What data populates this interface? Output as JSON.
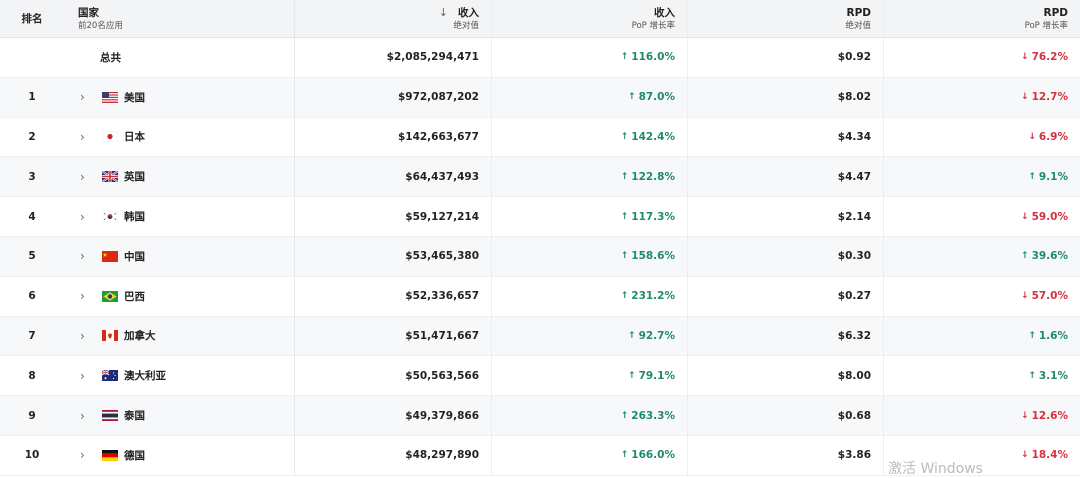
{
  "header": {
    "rank": "排名",
    "country": "国家",
    "country_sub": "前20名应用",
    "revenue": "收入",
    "revenue_sub": "绝对值",
    "revenue_growth": "收入",
    "revenue_growth_sub": "PoP 增长率",
    "rpd": "RPD",
    "rpd_sub": "绝对值",
    "rpd_growth": "RPD",
    "rpd_growth_sub": "PoP 增长率",
    "sort_icon": "sort-down-arrow-icon"
  },
  "total": {
    "label": "总共",
    "revenue": "$2,085,294,471",
    "revenue_growth": "116.0%",
    "revenue_growth_dir": "up",
    "rpd": "$0.92",
    "rpd_growth": "76.2%",
    "rpd_growth_dir": "down"
  },
  "rows": [
    {
      "rank": "1",
      "country": "美国",
      "flag": "us-flag-icon",
      "revenue": "$972,087,202",
      "revenue_growth": "87.0%",
      "revenue_growth_dir": "up",
      "rpd": "$8.02",
      "rpd_growth": "12.7%",
      "rpd_growth_dir": "down"
    },
    {
      "rank": "2",
      "country": "日本",
      "flag": "jp-flag-icon",
      "revenue": "$142,663,677",
      "revenue_growth": "142.4%",
      "revenue_growth_dir": "up",
      "rpd": "$4.34",
      "rpd_growth": "6.9%",
      "rpd_growth_dir": "down"
    },
    {
      "rank": "3",
      "country": "英国",
      "flag": "gb-flag-icon",
      "revenue": "$64,437,493",
      "revenue_growth": "122.8%",
      "revenue_growth_dir": "up",
      "rpd": "$4.47",
      "rpd_growth": "9.1%",
      "rpd_growth_dir": "up"
    },
    {
      "rank": "4",
      "country": "韩国",
      "flag": "kr-flag-icon",
      "revenue": "$59,127,214",
      "revenue_growth": "117.3%",
      "revenue_growth_dir": "up",
      "rpd": "$2.14",
      "rpd_growth": "59.0%",
      "rpd_growth_dir": "down"
    },
    {
      "rank": "5",
      "country": "中国",
      "flag": "cn-flag-icon",
      "revenue": "$53,465,380",
      "revenue_growth": "158.6%",
      "revenue_growth_dir": "up",
      "rpd": "$0.30",
      "rpd_growth": "39.6%",
      "rpd_growth_dir": "up"
    },
    {
      "rank": "6",
      "country": "巴西",
      "flag": "br-flag-icon",
      "revenue": "$52,336,657",
      "revenue_growth": "231.2%",
      "revenue_growth_dir": "up",
      "rpd": "$0.27",
      "rpd_growth": "57.0%",
      "rpd_growth_dir": "down"
    },
    {
      "rank": "7",
      "country": "加拿大",
      "flag": "ca-flag-icon",
      "revenue": "$51,471,667",
      "revenue_growth": "92.7%",
      "revenue_growth_dir": "up",
      "rpd": "$6.32",
      "rpd_growth": "1.6%",
      "rpd_growth_dir": "up"
    },
    {
      "rank": "8",
      "country": "澳大利亚",
      "flag": "au-flag-icon",
      "revenue": "$50,563,566",
      "revenue_growth": "79.1%",
      "revenue_growth_dir": "up",
      "rpd": "$8.00",
      "rpd_growth": "3.1%",
      "rpd_growth_dir": "up"
    },
    {
      "rank": "9",
      "country": "泰国",
      "flag": "th-flag-icon",
      "revenue": "$49,379,866",
      "revenue_growth": "263.3%",
      "revenue_growth_dir": "up",
      "rpd": "$0.68",
      "rpd_growth": "12.6%",
      "rpd_growth_dir": "down"
    },
    {
      "rank": "10",
      "country": "德国",
      "flag": "de-flag-icon",
      "revenue": "$48,297,890",
      "revenue_growth": "166.0%",
      "revenue_growth_dir": "up",
      "rpd": "$3.86",
      "rpd_growth": "18.4%",
      "rpd_growth_dir": "down"
    }
  ],
  "colors": {
    "up": "#1d8a6e",
    "down": "#d3323f",
    "header_bg": "#f3f4f6",
    "stripe": "#f7f8fa"
  },
  "watermark": "激活 Windows"
}
